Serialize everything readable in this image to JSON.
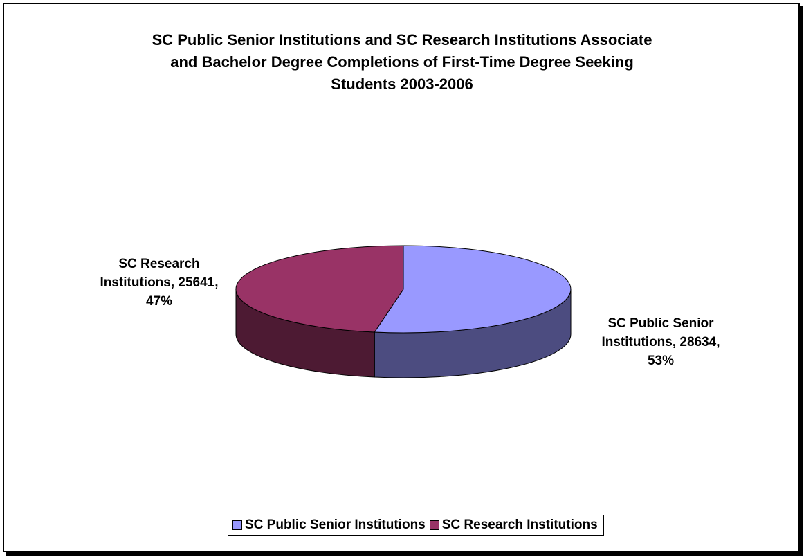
{
  "chart_data": {
    "type": "pie",
    "title": "SC Public Senior Institutions and SC Research Institutions Associate and Bachelor Degree Completions of First-Time Degree Seeking Students 2003-2006",
    "title_lines": [
      "SC Public Senior Institutions and SC Research Institutions Associate",
      "and Bachelor Degree Completions of First-Time Degree Seeking",
      "Students 2003-2006"
    ],
    "style": "3d",
    "legend_position": "bottom",
    "slices": [
      {
        "name": "SC Public Senior Institutions",
        "value": 28634,
        "percent": 53,
        "color": "#9999ff",
        "side_color": "#4c4c80",
        "label_lines": [
          "SC Public Senior",
          "Institutions, 28634,",
          "53%"
        ]
      },
      {
        "name": "SC Research Institutions",
        "value": 25641,
        "percent": 47,
        "color": "#993366",
        "side_color": "#4d1a33",
        "label_lines": [
          "SC Research",
          "Institutions, 25641,",
          "47%"
        ]
      }
    ]
  }
}
